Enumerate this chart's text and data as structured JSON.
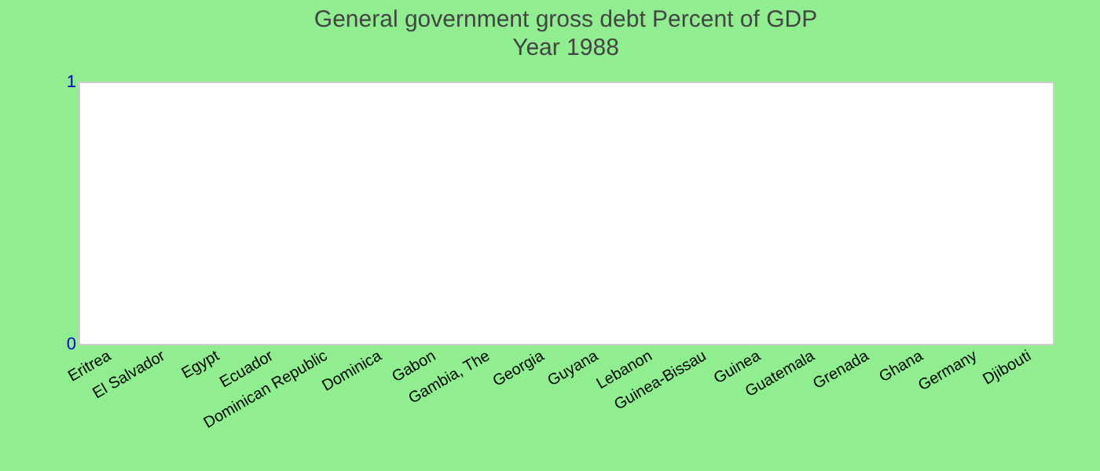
{
  "chart_data": {
    "type": "bar",
    "title": "General government gross debt  Percent of GDP",
    "subtitle": "Year 1988",
    "categories": [
      "Eritrea",
      "El Salvador",
      "Egypt",
      "Ecuador",
      "Dominican Republic",
      "Dominica",
      "Gabon",
      "Gambia, The",
      "Georgia",
      "Guyana",
      "Lebanon",
      "Guinea-Bissau",
      "Guinea",
      "Guatemala",
      "Grenada",
      "Ghana",
      "Germany",
      "Djibouti"
    ],
    "values": [
      0,
      0,
      0,
      0,
      0,
      0,
      0,
      0,
      0,
      0,
      0,
      0,
      0,
      0,
      0,
      0,
      0,
      0
    ],
    "ylim": [
      0,
      1
    ],
    "yticks": [
      0,
      1
    ],
    "grid": false
  }
}
